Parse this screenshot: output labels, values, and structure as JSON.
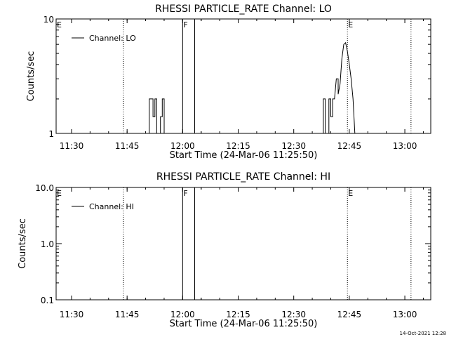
{
  "footer": {
    "timestamp": "14-Oct-2021 12:28"
  },
  "chart_data": [
    {
      "type": "line",
      "title": "RHESSI PARTICLE_RATE Channel: LO",
      "xlabel": "Start Time (24-Mar-06 11:25:50)",
      "ylabel": "Counts/sec",
      "xscale": "time",
      "yscale": "log",
      "xlim": [
        "11:25:50",
        "13:07:00"
      ],
      "ylim": [
        1,
        10
      ],
      "xticks": [
        "11:30",
        "11:45",
        "12:00",
        "12:15",
        "12:30",
        "12:45",
        "13:00"
      ],
      "yticks": [
        "1",
        "10"
      ],
      "legend": {
        "position": "top-left",
        "entries": [
          "Channel: LO"
        ]
      },
      "markers": [
        {
          "label": "E",
          "time": "11:25:50",
          "style": "dotted"
        },
        {
          "label": "",
          "time": "11:44:00",
          "style": "dotted"
        },
        {
          "label": "F",
          "time": "12:00:00",
          "style": "solid"
        },
        {
          "label": "",
          "time": "12:03:15",
          "style": "solid"
        },
        {
          "label": "E",
          "time": "12:44:30",
          "style": "dotted"
        },
        {
          "label": "",
          "time": "13:01:40",
          "style": "dotted"
        }
      ],
      "series": [
        {
          "name": "Channel: LO",
          "points": [
            [
              "11:51:00",
              1
            ],
            [
              "11:51:00",
              2
            ],
            [
              "11:52:00",
              2
            ],
            [
              "11:52:00",
              1.4
            ],
            [
              "11:52:30",
              1.4
            ],
            [
              "11:52:30",
              2
            ],
            [
              "11:53:00",
              2
            ],
            [
              "11:53:00",
              1
            ],
            [
              "11:54:00",
              1
            ],
            [
              "11:54:00",
              1.4
            ],
            [
              "11:54:30",
              1.4
            ],
            [
              "11:54:30",
              2
            ],
            [
              "11:55:00",
              2
            ],
            [
              "11:55:00",
              1
            ],
            [
              "12:38:00",
              1
            ],
            [
              "12:38:00",
              2
            ],
            [
              "12:38:30",
              2
            ],
            [
              "12:38:30",
              1
            ],
            [
              "12:39:30",
              1
            ],
            [
              "12:39:30",
              2
            ],
            [
              "12:40:00",
              2
            ],
            [
              "12:40:00",
              1.4
            ],
            [
              "12:40:30",
              1.4
            ],
            [
              "12:40:30",
              2
            ],
            [
              "12:41:00",
              2
            ],
            [
              "12:41:30",
              3
            ],
            [
              "12:42:00",
              3
            ],
            [
              "12:42:00",
              2.2
            ],
            [
              "12:42:30",
              2.7
            ],
            [
              "12:43:00",
              4.5
            ],
            [
              "12:43:30",
              6
            ],
            [
              "12:44:00",
              6.2
            ],
            [
              "12:44:30",
              5.2
            ],
            [
              "12:45:00",
              4
            ],
            [
              "12:45:30",
              3
            ],
            [
              "12:46:00",
              2
            ],
            [
              "12:46:30",
              1
            ]
          ]
        }
      ]
    },
    {
      "type": "line",
      "title": "RHESSI PARTICLE_RATE Channel: HI",
      "xlabel": "Start Time (24-Mar-06 11:25:50)",
      "ylabel": "Counts/sec",
      "xscale": "time",
      "yscale": "log",
      "xlim": [
        "11:25:50",
        "13:07:00"
      ],
      "ylim": [
        0.1,
        10
      ],
      "xticks": [
        "11:30",
        "11:45",
        "12:00",
        "12:15",
        "12:30",
        "12:45",
        "13:00"
      ],
      "yticks": [
        "0.1",
        "1.0",
        "10.0"
      ],
      "legend": {
        "position": "top-left",
        "entries": [
          "Channel: HI"
        ]
      },
      "markers": [
        {
          "label": "E",
          "time": "11:25:50",
          "style": "dotted"
        },
        {
          "label": "",
          "time": "11:44:00",
          "style": "dotted"
        },
        {
          "label": "F",
          "time": "12:00:00",
          "style": "solid"
        },
        {
          "label": "",
          "time": "12:03:15",
          "style": "solid"
        },
        {
          "label": "E",
          "time": "12:44:30",
          "style": "dotted"
        },
        {
          "label": "",
          "time": "13:01:40",
          "style": "dotted"
        }
      ],
      "series": [
        {
          "name": "Channel: HI",
          "points": []
        }
      ]
    }
  ]
}
